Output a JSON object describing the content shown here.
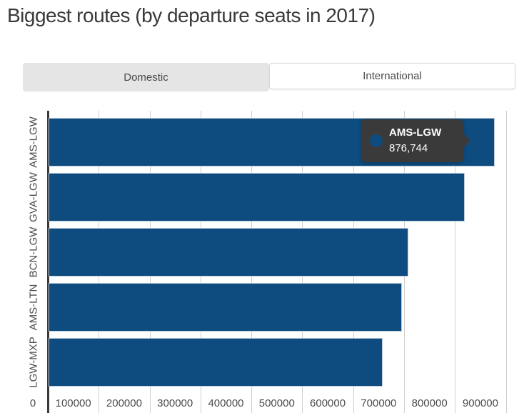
{
  "page": {
    "title": "Biggest routes (by departure seats in 2017)"
  },
  "tabs": [
    {
      "label": "Domestic",
      "active": false
    },
    {
      "label": "International",
      "active": true
    }
  ],
  "chart_data": {
    "type": "bar",
    "orientation": "horizontal",
    "title": "Biggest routes (by departure seats in 2017)",
    "categories": [
      "AMS-LGW",
      "GVA-LGW",
      "BCN-LGW",
      "AMS-LTN",
      "LGW-MXP"
    ],
    "values": [
      876744,
      818000,
      707000,
      694000,
      656000
    ],
    "x_ticks": [
      0,
      100000,
      200000,
      300000,
      400000,
      500000,
      600000,
      700000,
      800000,
      900000
    ],
    "x_tick_labels": [
      "0",
      "100000",
      "200000",
      "300000",
      "400000",
      "500000",
      "600000",
      "700000",
      "800000",
      "900000"
    ],
    "xlim": [
      0,
      920000
    ],
    "grid": true,
    "legend": "none",
    "tooltip": {
      "series": "AMS-LGW",
      "value_formatted": "876,744",
      "value": 876744
    }
  },
  "colors": {
    "bar": "#0e4b7e",
    "bar_border": "#b7c9da",
    "grid_line": "#cfcfcf",
    "axis_line": "#3a3a3a",
    "axis_text": "#4d4d4d",
    "tab_inactive_bg": "#e5e5e5",
    "tooltip_bg": "#3a3a3a",
    "tooltip_marker": "#0e4b7e"
  }
}
